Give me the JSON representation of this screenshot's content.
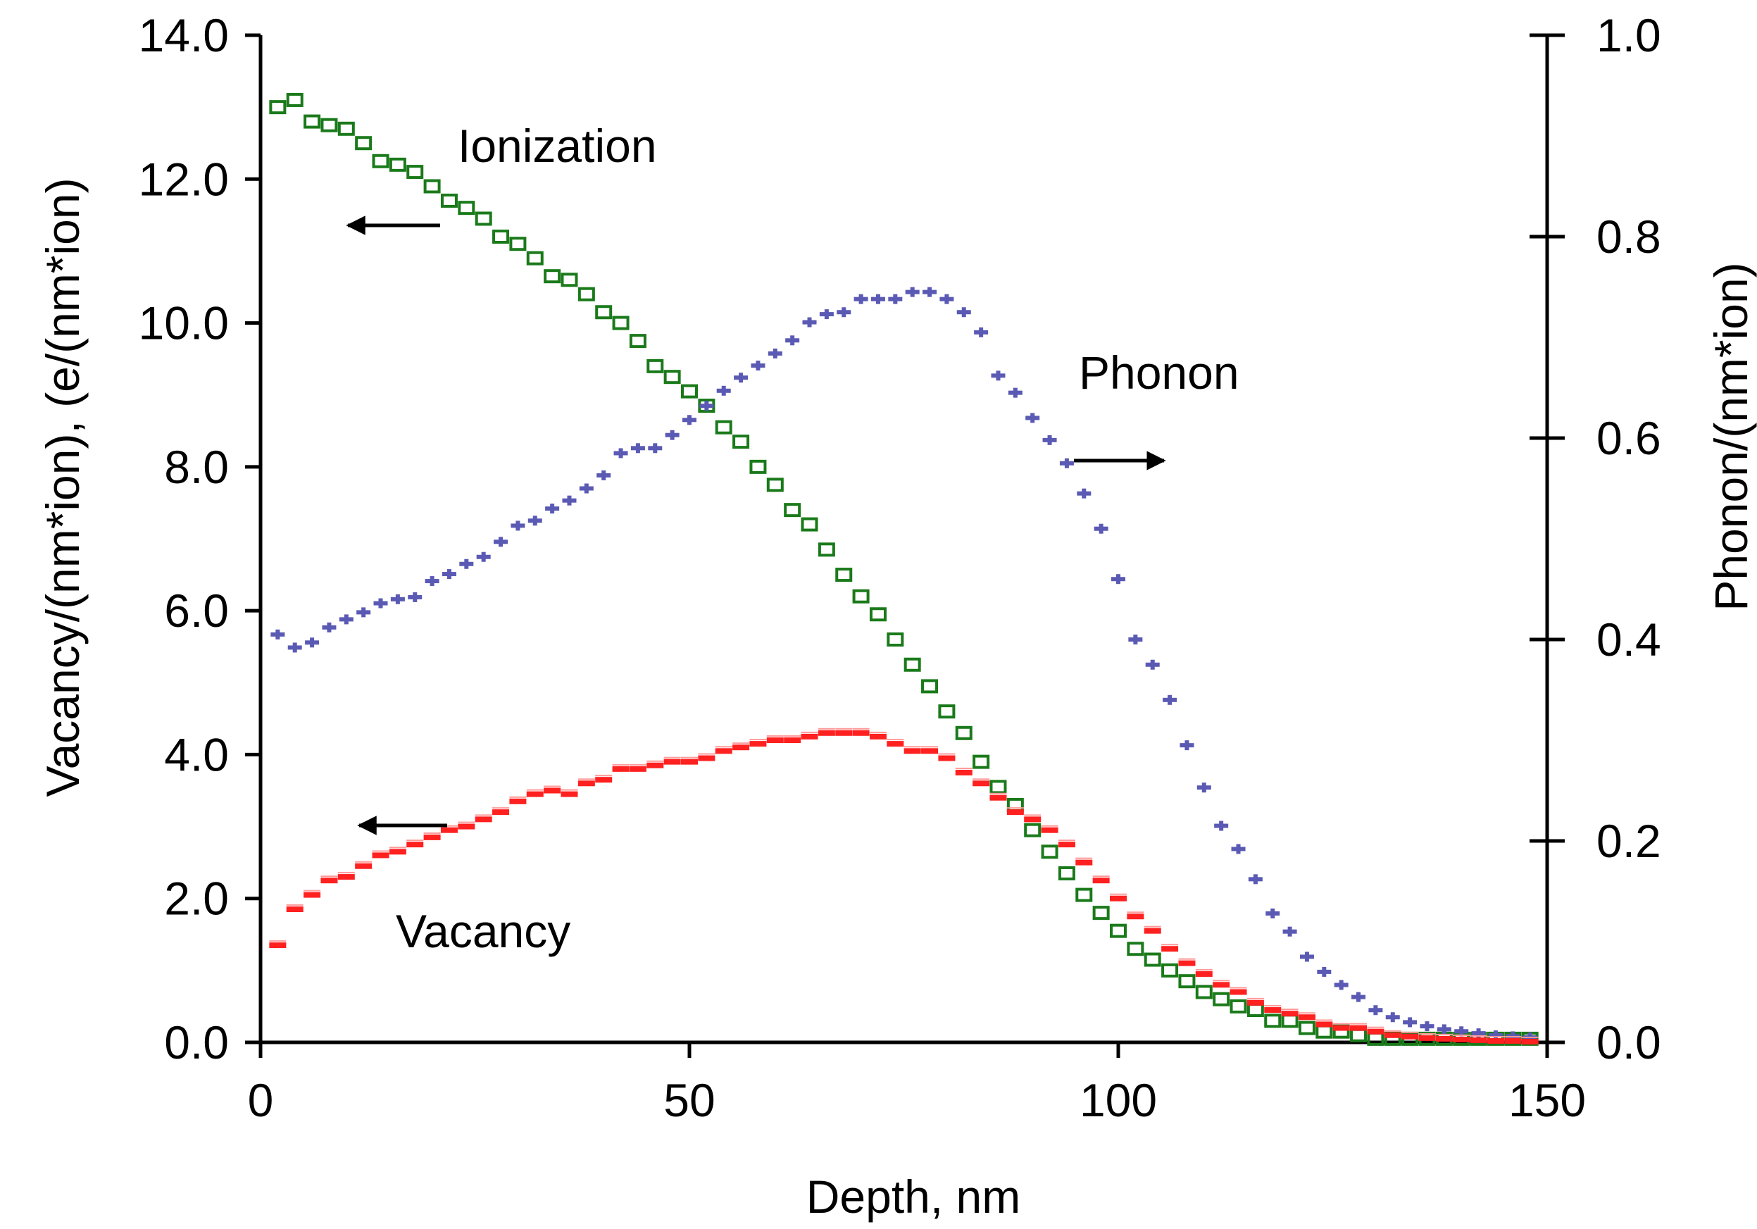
{
  "chart_data": {
    "type": "scatter",
    "title": "",
    "xlabel": "Depth, nm",
    "ylabel_left": "Vacancy/(nm*ion), (e/(nm*ion)",
    "ylabel_right": "Phonon/(nm*ion)",
    "xlim": [
      0,
      150
    ],
    "ylim_left": [
      0,
      14
    ],
    "ylim_right": [
      0,
      1
    ],
    "xticks": [
      "0",
      "50",
      "100",
      "150"
    ],
    "yticks_left": [
      "0.0",
      "2.0",
      "4.0",
      "6.0",
      "8.0",
      "10.0",
      "12.0",
      "14.0"
    ],
    "yticks_right": [
      "0.0",
      "0.2",
      "0.4",
      "0.6",
      "0.8",
      "1.0"
    ],
    "grid": false,
    "annotations": {
      "ionization": "Ionization",
      "phonon": "Phonon",
      "vacancy": "Vacancy"
    },
    "series": [
      {
        "name": "Ionization",
        "axis": "left",
        "marker": "open-square",
        "color": "#1a7a1a",
        "x": [
          2,
          4,
          6,
          8,
          10,
          12,
          14,
          16,
          18,
          20,
          22,
          24,
          26,
          28,
          30,
          32,
          34,
          36,
          38,
          40,
          42,
          44,
          46,
          48,
          50,
          52,
          54,
          56,
          58,
          60,
          62,
          64,
          66,
          68,
          70,
          72,
          74,
          76,
          78,
          80,
          82,
          84,
          86,
          88,
          90,
          92,
          94,
          96,
          98,
          100,
          102,
          104,
          106,
          108,
          110,
          112,
          114,
          116,
          118,
          120,
          122,
          124,
          126,
          128,
          130,
          132,
          134,
          136,
          138,
          140,
          142,
          144,
          146,
          148
        ],
        "y": [
          13.0,
          13.1,
          12.8,
          12.75,
          12.7,
          12.5,
          12.25,
          12.2,
          12.1,
          11.9,
          11.7,
          11.6,
          11.45,
          11.2,
          11.1,
          10.9,
          10.65,
          10.6,
          10.4,
          10.15,
          10.0,
          9.75,
          9.4,
          9.25,
          9.05,
          8.85,
          8.55,
          8.35,
          8.0,
          7.75,
          7.4,
          7.2,
          6.85,
          6.5,
          6.2,
          5.95,
          5.6,
          5.25,
          4.95,
          4.6,
          4.3,
          3.9,
          3.55,
          3.3,
          2.95,
          2.65,
          2.35,
          2.05,
          1.8,
          1.55,
          1.3,
          1.15,
          1.0,
          0.85,
          0.7,
          0.6,
          0.5,
          0.45,
          0.3,
          0.3,
          0.2,
          0.15,
          0.15,
          0.1,
          0.05,
          0.05,
          0.05,
          0.05,
          0.05,
          0.05,
          0.05,
          0.05,
          0.05,
          0.05
        ]
      },
      {
        "name": "Phonon",
        "axis": "right",
        "marker": "cross",
        "color": "#5a5ab4",
        "x": [
          2,
          4,
          6,
          8,
          10,
          12,
          14,
          16,
          18,
          20,
          22,
          24,
          26,
          28,
          30,
          32,
          34,
          36,
          38,
          40,
          42,
          44,
          46,
          48,
          50,
          52,
          54,
          56,
          58,
          60,
          62,
          64,
          66,
          68,
          70,
          72,
          74,
          76,
          78,
          80,
          82,
          84,
          86,
          88,
          90,
          92,
          94,
          96,
          98,
          100,
          102,
          104,
          106,
          108,
          110,
          112,
          114,
          116,
          118,
          120,
          122,
          124,
          126,
          128,
          130,
          132,
          134,
          136,
          138,
          140,
          142,
          144,
          146,
          148
        ],
        "y": [
          0.405,
          0.392,
          0.397,
          0.412,
          0.42,
          0.427,
          0.436,
          0.44,
          0.442,
          0.458,
          0.465,
          0.475,
          0.482,
          0.497,
          0.513,
          0.518,
          0.53,
          0.538,
          0.55,
          0.563,
          0.585,
          0.59,
          0.59,
          0.603,
          0.618,
          0.632,
          0.647,
          0.66,
          0.672,
          0.684,
          0.697,
          0.715,
          0.723,
          0.725,
          0.738,
          0.738,
          0.738,
          0.745,
          0.745,
          0.738,
          0.725,
          0.705,
          0.662,
          0.645,
          0.62,
          0.598,
          0.575,
          0.545,
          0.51,
          0.46,
          0.4,
          0.375,
          0.34,
          0.295,
          0.253,
          0.215,
          0.192,
          0.162,
          0.128,
          0.11,
          0.085,
          0.07,
          0.057,
          0.045,
          0.032,
          0.025,
          0.02,
          0.016,
          0.013,
          0.011,
          0.009,
          0.007,
          0.006,
          0.005
        ]
      },
      {
        "name": "Vacancy",
        "axis": "left",
        "marker": "dash",
        "color": "#ff2020",
        "x": [
          2,
          4,
          6,
          8,
          10,
          12,
          14,
          16,
          18,
          20,
          22,
          24,
          26,
          28,
          30,
          32,
          34,
          36,
          38,
          40,
          42,
          44,
          46,
          48,
          50,
          52,
          54,
          56,
          58,
          60,
          62,
          64,
          66,
          68,
          70,
          72,
          74,
          76,
          78,
          80,
          82,
          84,
          86,
          88,
          90,
          92,
          94,
          96,
          98,
          100,
          102,
          104,
          106,
          108,
          110,
          112,
          114,
          116,
          118,
          120,
          122,
          124,
          126,
          128,
          130,
          132,
          134,
          136,
          138,
          140,
          142,
          144,
          146,
          148
        ],
        "y": [
          1.35,
          1.85,
          2.05,
          2.25,
          2.3,
          2.45,
          2.6,
          2.65,
          2.75,
          2.85,
          2.95,
          3.0,
          3.1,
          3.2,
          3.35,
          3.45,
          3.5,
          3.45,
          3.6,
          3.65,
          3.8,
          3.8,
          3.85,
          3.9,
          3.9,
          3.95,
          4.05,
          4.1,
          4.15,
          4.2,
          4.2,
          4.25,
          4.3,
          4.3,
          4.3,
          4.25,
          4.15,
          4.05,
          4.05,
          3.95,
          3.75,
          3.6,
          3.4,
          3.2,
          3.1,
          2.95,
          2.75,
          2.5,
          2.25,
          2.0,
          1.75,
          1.55,
          1.3,
          1.1,
          0.95,
          0.8,
          0.7,
          0.55,
          0.45,
          0.4,
          0.35,
          0.25,
          0.2,
          0.2,
          0.15,
          0.1,
          0.08,
          0.06,
          0.05,
          0.04,
          0.03,
          0.02,
          0.02,
          0.01
        ]
      }
    ]
  }
}
